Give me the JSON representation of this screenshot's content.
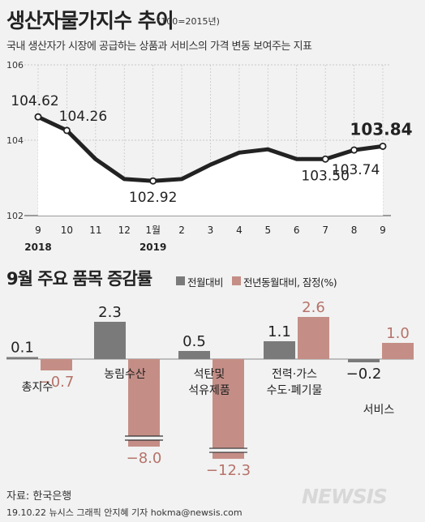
{
  "title": "생산자물가지수 추이",
  "title_note": "(100=2015년)",
  "subtitle": "국내 생산자가 시장에 공급하는 상품과 서비스의 가격 변동 보여주는 지표",
  "colors": {
    "line": "#222222",
    "area": "#ffffff",
    "bar_mom": "#7a7a7a",
    "bar_yoy": "#c48e86",
    "bar_yoy_text": "#b5736a",
    "background": "#f2f2f2"
  },
  "chart_data": [
    {
      "type": "line",
      "x": [
        "9",
        "10",
        "11",
        "12",
        "1월",
        "2",
        "3",
        "4",
        "5",
        "6",
        "7",
        "8",
        "9"
      ],
      "year_labels": [
        {
          "at": "9",
          "text": "2018"
        },
        {
          "at": "1월",
          "text": "2019"
        }
      ],
      "values": [
        104.62,
        104.26,
        103.5,
        102.97,
        102.92,
        102.97,
        103.35,
        103.67,
        103.76,
        103.5,
        103.5,
        103.74,
        103.84
      ],
      "data_labels": [
        {
          "index": 0,
          "text": "104.62"
        },
        {
          "index": 1,
          "text": "104.26"
        },
        {
          "index": 4,
          "text": "102.92"
        },
        {
          "index": 10,
          "text": "103.50"
        },
        {
          "index": 11,
          "text": "103.74"
        },
        {
          "index": 12,
          "text": "103.84"
        }
      ],
      "marked_points": [
        0,
        1,
        4,
        10,
        11,
        12
      ],
      "ylim": [
        102,
        106
      ],
      "yticks": [
        "102",
        "104",
        "106"
      ]
    },
    {
      "type": "bar",
      "title": "9월 주요 품목 증감률",
      "categories": [
        [
          "총지수"
        ],
        [
          "농림수산"
        ],
        [
          "석탄및",
          "석유제품"
        ],
        [
          "전력·가스",
          "수도·폐기물"
        ],
        [
          "서비스"
        ]
      ],
      "series": [
        {
          "name": "전월대비",
          "values": [
            0.1,
            2.3,
            0.5,
            1.1,
            -0.2
          ],
          "labels": [
            "0.1",
            "2.3",
            "0.5",
            "1.1",
            "−0.2"
          ]
        },
        {
          "name": "전년동월대비, 잠정(%)",
          "values": [
            -0.7,
            -8.0,
            -12.3,
            2.6,
            1.0
          ],
          "labels": [
            "−0.7",
            "−8.0",
            "−12.3",
            "2.6",
            "1.0"
          ]
        }
      ],
      "axis_breaks": [
        {
          "series": 1,
          "category": 1
        },
        {
          "series": 1,
          "category": 2
        }
      ]
    }
  ],
  "source": "자료: 한국은행",
  "credit": "19.10.22 뉴시스 그래픽 안지혜 기자  hokma@newsis.com",
  "logo": "NEWSIS"
}
